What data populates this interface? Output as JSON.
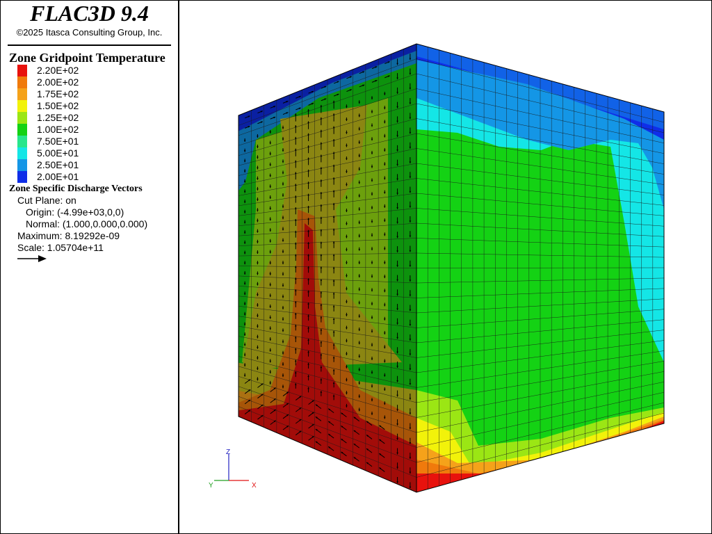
{
  "app": {
    "title": "FLAC3D 9.4",
    "copyright": "©2025 Itasca Consulting Group, Inc."
  },
  "contour": {
    "title": "Zone Gridpoint Temperature",
    "levels": [
      {
        "label": "2.20E+02",
        "color": "#e8120d"
      },
      {
        "label": "2.00E+02",
        "color": "#f07a0c"
      },
      {
        "label": "1.75E+02",
        "color": "#f5a21a"
      },
      {
        "label": "1.50E+02",
        "color": "#f2f20a"
      },
      {
        "label": "1.25E+02",
        "color": "#9be614"
      },
      {
        "label": "1.00E+02",
        "color": "#14d214"
      },
      {
        "label": "7.50E+01",
        "color": "#28e68c"
      },
      {
        "label": "5.00E+01",
        "color": "#14e6e6"
      },
      {
        "label": "2.50E+01",
        "color": "#1496e6"
      },
      {
        "label": "2.00E+01",
        "color": "#0f2ee8"
      }
    ]
  },
  "vectors": {
    "title": "Zone Specific Discharge Vectors",
    "cut_plane": "Cut Plane: on",
    "origin": "Origin: (-4.99e+03,0,0)",
    "normal": "Normal: (1.000,0.000,0.000)",
    "maximum": "Maximum: 8.19292e-09",
    "scale": "Scale: 1.05704e+11"
  },
  "axes": {
    "z_label": "Z",
    "y_label": "Y",
    "x_label": "X",
    "z_color": "#2020c0",
    "y_color": "#20a020",
    "x_color": "#e01010"
  }
}
